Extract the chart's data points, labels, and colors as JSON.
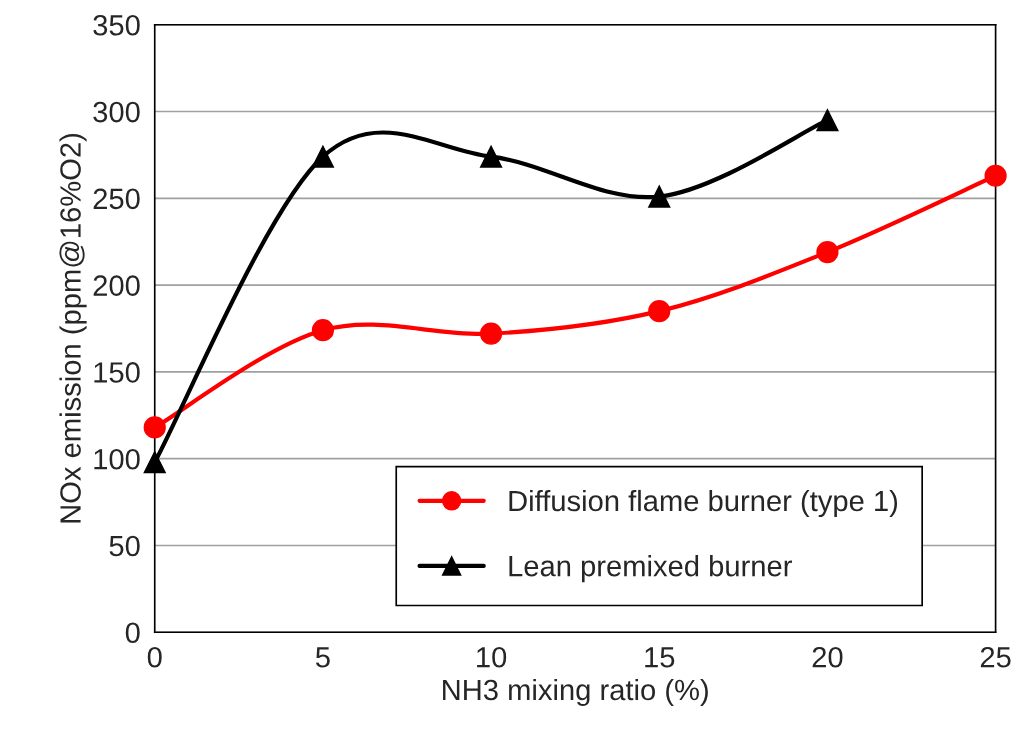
{
  "chart_data": {
    "type": "line",
    "xlabel": "NH3 mixing ratio (%)",
    "ylabel": "NOx emission (ppm@16%O2)",
    "x": [
      0,
      5,
      10,
      15,
      20,
      25
    ],
    "series": [
      {
        "name": "Diffusion flame burner (type 1)",
        "color": "#ff0000",
        "marker": "circle",
        "values": [
          118,
          174,
          172,
          185,
          219,
          263
        ]
      },
      {
        "name": "Lean premixed burner",
        "color": "#000000",
        "marker": "triangle",
        "values": [
          98,
          274,
          274,
          251,
          295,
          null
        ]
      }
    ],
    "xlim": [
      0,
      25
    ],
    "xticks": [
      0,
      5,
      10,
      15,
      20,
      25
    ],
    "ylim": [
      0,
      350
    ],
    "yticks": [
      0,
      50,
      100,
      150,
      200,
      250,
      300,
      350
    ],
    "grid": "y",
    "legend": "lower right",
    "line_style": "solid"
  }
}
